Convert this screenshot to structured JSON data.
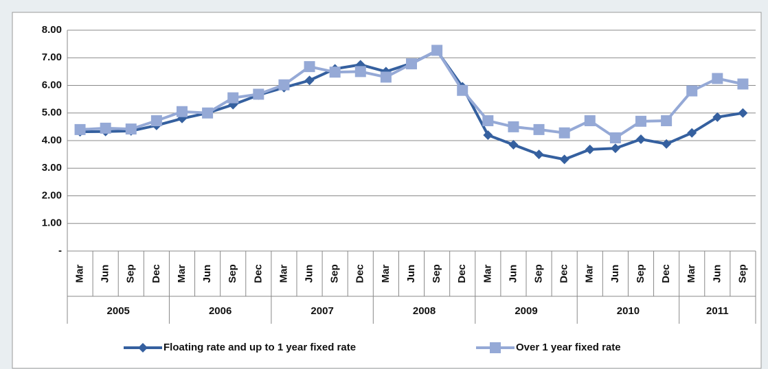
{
  "chart_data": {
    "type": "line",
    "categories": [
      "Mar",
      "Jun",
      "Sep",
      "Dec",
      "Mar",
      "Jun",
      "Sep",
      "Dec",
      "Mar",
      "Jun",
      "Sep",
      "Dec",
      "Mar",
      "Jun",
      "Sep",
      "Dec",
      "Mar",
      "Jun",
      "Sep",
      "Dec",
      "Mar",
      "Jun",
      "Sep",
      "Dec",
      "Mar",
      "Jun",
      "Sep"
    ],
    "groups": [
      "2005",
      "2006",
      "2007",
      "2008",
      "2009",
      "2010",
      "2011"
    ],
    "series": [
      {
        "name": "Floating rate and up to 1 year fixed rate",
        "color": "#35609f",
        "marker": "diamond",
        "values": [
          4.32,
          4.33,
          4.35,
          4.55,
          4.8,
          5.0,
          5.3,
          5.65,
          5.92,
          6.18,
          6.6,
          6.75,
          6.5,
          6.8,
          7.25,
          5.95,
          4.2,
          3.85,
          3.5,
          3.32,
          3.68,
          3.72,
          4.05,
          3.88,
          4.28,
          4.85,
          5.0
        ]
      },
      {
        "name": "Over 1 year fixed rate",
        "color": "#95a9d6",
        "marker": "square",
        "values": [
          4.4,
          4.45,
          4.42,
          4.72,
          5.05,
          5.0,
          5.55,
          5.68,
          6.02,
          6.68,
          6.48,
          6.5,
          6.3,
          6.78,
          7.27,
          5.82,
          4.72,
          4.5,
          4.4,
          4.28,
          4.72,
          4.1,
          4.7,
          4.72,
          5.8,
          6.25,
          6.05
        ]
      }
    ],
    "ylim": [
      0,
      8
    ],
    "yticks": [
      {
        "value": 0,
        "label": "-"
      },
      {
        "value": 1,
        "label": "1.00"
      },
      {
        "value": 2,
        "label": "2.00"
      },
      {
        "value": 3,
        "label": "3.00"
      },
      {
        "value": 4,
        "label": "4.00"
      },
      {
        "value": 5,
        "label": "5.00"
      },
      {
        "value": 6,
        "label": "6.00"
      },
      {
        "value": 7,
        "label": "7.00"
      },
      {
        "value": 8,
        "label": "8.00"
      }
    ],
    "grid": true
  }
}
